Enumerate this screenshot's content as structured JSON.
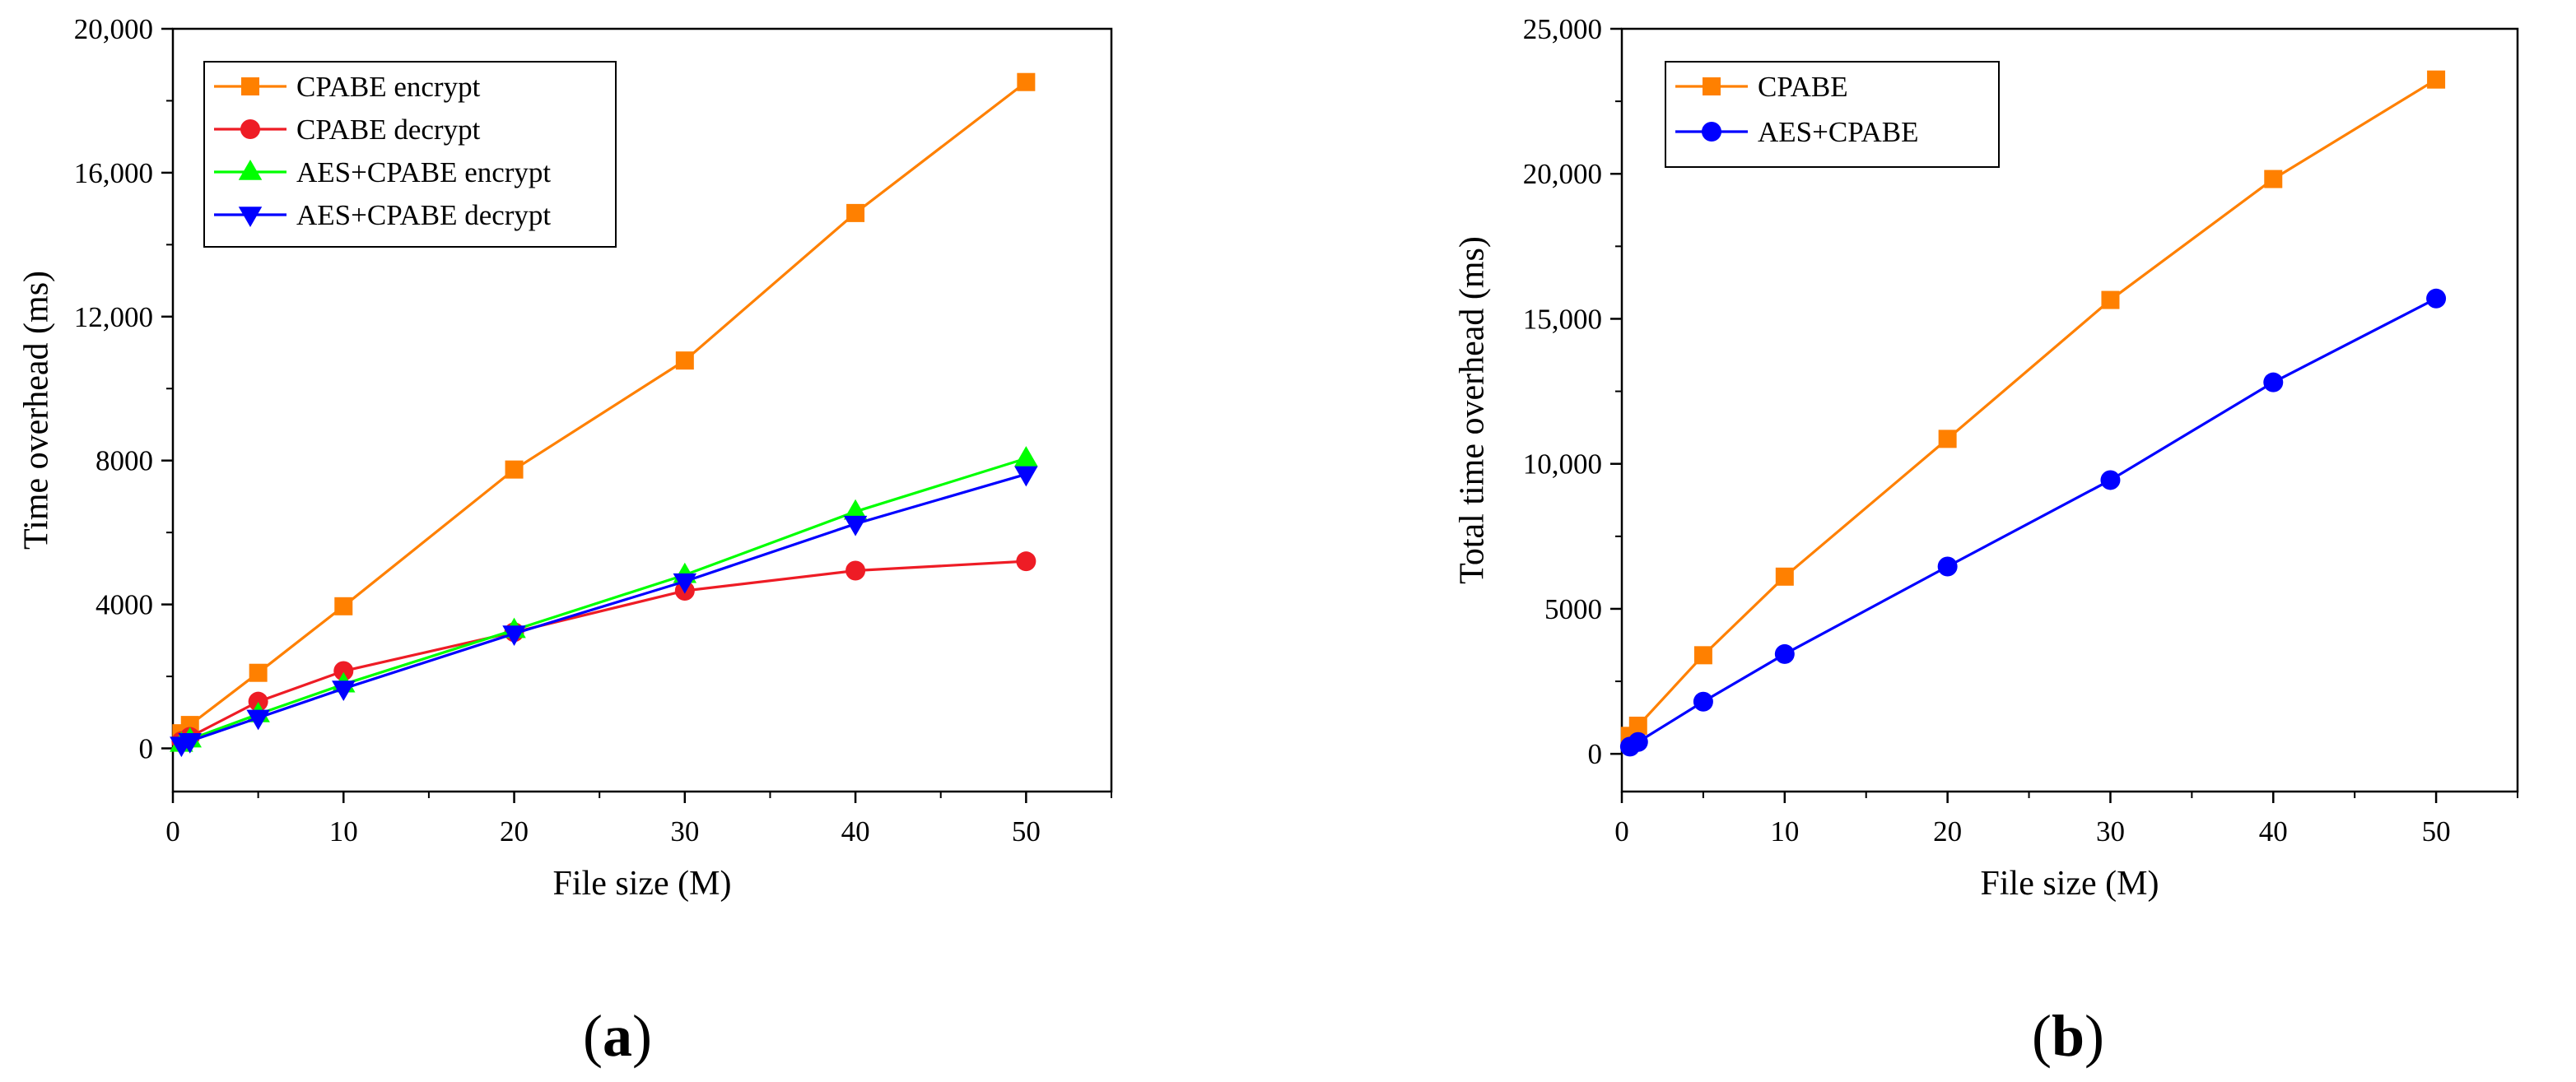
{
  "chart_data": [
    {
      "type": "line",
      "panel_label": "(a)",
      "title": "",
      "xlabel": "File size (M)",
      "ylabel": "Time overhead (ms)",
      "xlim": [
        0,
        55
      ],
      "ylim": [
        -1200,
        20000
      ],
      "x_ticks": [
        0,
        10,
        20,
        30,
        40,
        50
      ],
      "y_ticks": [
        0,
        4000,
        8000,
        12000,
        16000,
        20000
      ],
      "y_tick_labels": [
        "0",
        "4000",
        "8000",
        "12,000",
        "16,000",
        "20,000"
      ],
      "grid": false,
      "legend_position": "top-left",
      "x": [
        0.5,
        1,
        5,
        10,
        20,
        30,
        40,
        50
      ],
      "series": [
        {
          "name": "CPABE encrypt",
          "color": "#ff8000",
          "marker": "square",
          "values": [
            420,
            650,
            2100,
            3950,
            7750,
            10780,
            14880,
            18520
          ]
        },
        {
          "name": "CPABE decrypt",
          "color": "#ee1c25",
          "marker": "circle",
          "values": [
            200,
            320,
            1300,
            2150,
            3230,
            4380,
            4940,
            5200
          ]
        },
        {
          "name": "AES+CPABE encrypt",
          "color": "#00ff00",
          "marker": "triangle-up",
          "values": [
            130,
            250,
            950,
            1780,
            3290,
            4820,
            6580,
            8060
          ]
        },
        {
          "name": "AES+CPABE decrypt",
          "color": "#0000ff",
          "marker": "triangle-down",
          "values": [
            100,
            200,
            850,
            1660,
            3190,
            4640,
            6240,
            7620
          ]
        }
      ]
    },
    {
      "type": "line",
      "panel_label": "(b)",
      "title": "",
      "xlabel": "File size (M)",
      "ylabel": "Total time overhead (ms)",
      "xlim": [
        0,
        55
      ],
      "ylim": [
        -1300,
        25000
      ],
      "x_ticks": [
        0,
        10,
        20,
        30,
        40,
        50
      ],
      "y_ticks": [
        0,
        5000,
        10000,
        15000,
        20000,
        25000
      ],
      "y_tick_labels": [
        "0",
        "5000",
        "10,000",
        "15,000",
        "20,000",
        "25,000"
      ],
      "grid": false,
      "legend_position": "top-left",
      "x": [
        0.5,
        1,
        5,
        10,
        20,
        30,
        40,
        50
      ],
      "series": [
        {
          "name": "CPABE",
          "color": "#ff8000",
          "marker": "square",
          "values": [
            620,
            970,
            3400,
            6110,
            10860,
            15650,
            19820,
            23250
          ]
        },
        {
          "name": "AES+CPABE",
          "color": "#0000ff",
          "marker": "circle",
          "values": [
            250,
            410,
            1800,
            3440,
            6460,
            9440,
            12810,
            15700
          ]
        }
      ]
    }
  ]
}
